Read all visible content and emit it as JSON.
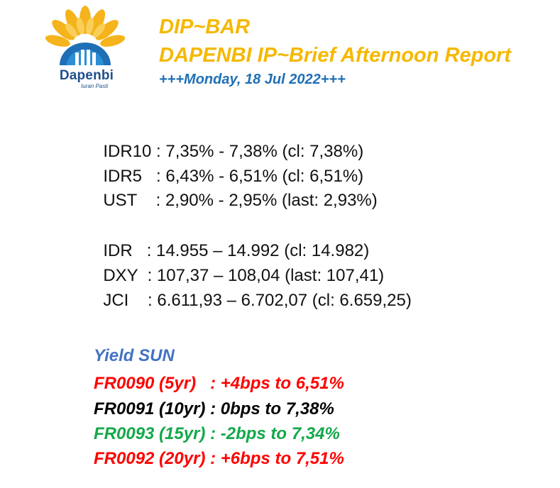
{
  "logo": {
    "name": "Dapenbi",
    "tagline": "Iuran Pasti"
  },
  "header": {
    "title": "DIP~BAR",
    "subtitle": "DAPENBI IP~Brief Afternoon Report",
    "date": "+++Monday, 18 Jul 2022+++"
  },
  "bonds": [
    {
      "label": "IDR10",
      "sep": " : ",
      "value": "7,35% - 7,38% (cl: 7,38%)"
    },
    {
      "label": "IDR5",
      "sep": "   : ",
      "value": "6,43% - 6,51% (cl: 6,51%)"
    },
    {
      "label": "UST",
      "sep": "    : ",
      "value": "2,90% - 2,95% (last: 2,93%)"
    }
  ],
  "markets": [
    {
      "label": "IDR",
      "sep": "   : ",
      "value": "14.955 – 14.992 (cl: 14.982)"
    },
    {
      "label": "DXY",
      "sep": "  : ",
      "value": "107,37 – 108,04 (last: 107,41)"
    },
    {
      "label": "JCI",
      "sep": "    : ",
      "value": "6.611,93 – 6.702,07 (cl: 6.659,25)"
    }
  ],
  "yield_sun": {
    "title": "Yield SUN",
    "items": [
      {
        "text": "FR0090 (5yr)   : +4bps to 6,51%",
        "color": "#ff0000"
      },
      {
        "text": "FR0091 (10yr) : 0bps to 7,38%",
        "color": "#000000"
      },
      {
        "text": "FR0093 (15yr) : -2bps to 7,34%",
        "color": "#14a84a"
      },
      {
        "text": "FR0092 (20yr) : +6bps to 7,51%",
        "color": "#ff0000"
      }
    ],
    "title_color": "#4472c4"
  }
}
